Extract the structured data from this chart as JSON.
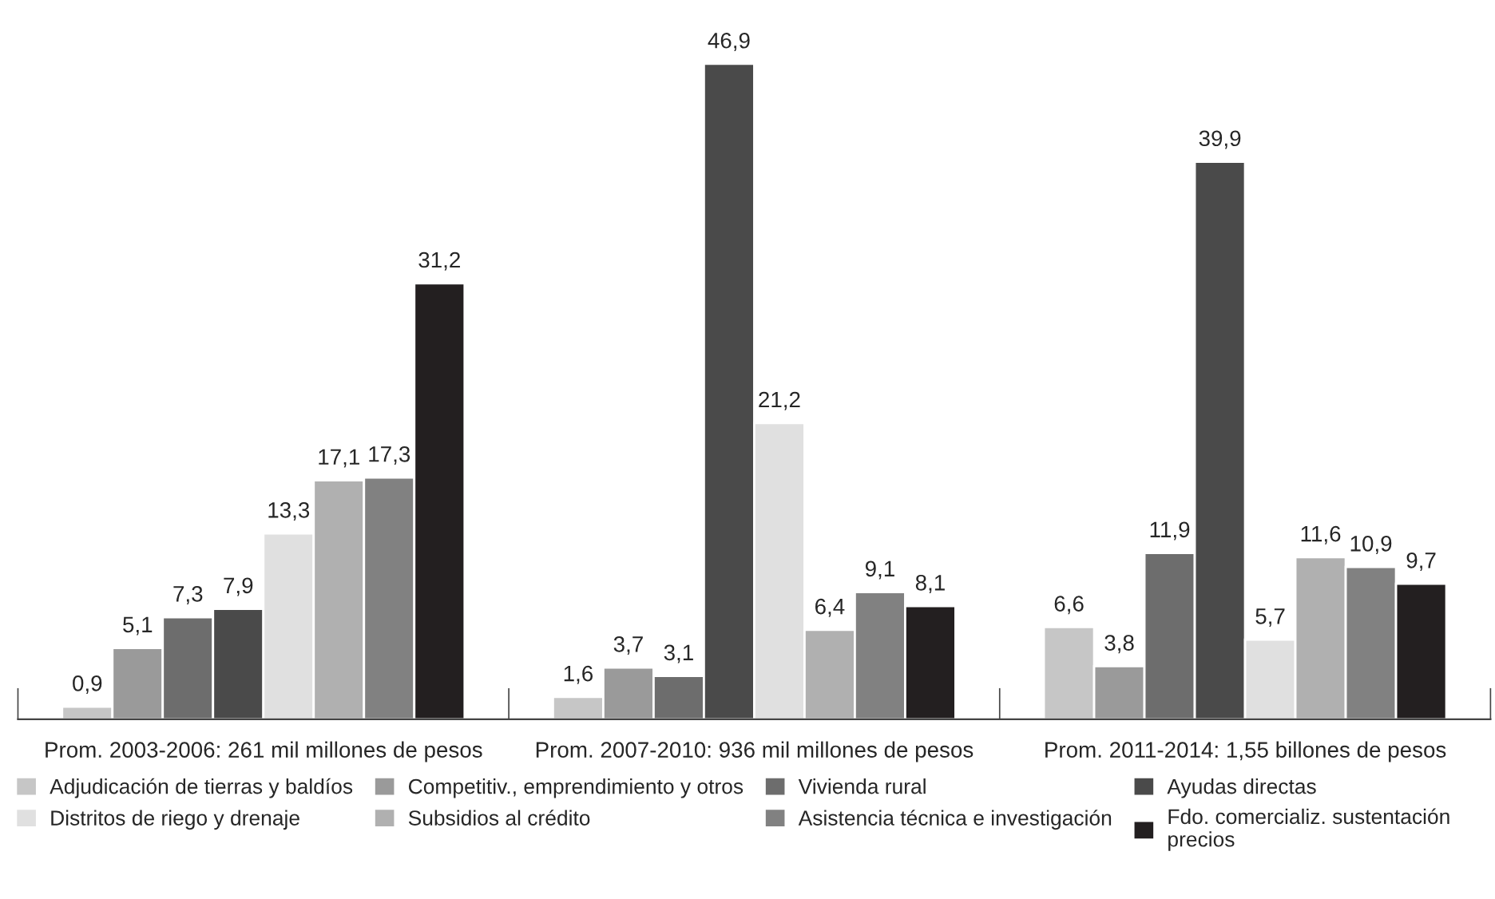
{
  "chart_data": {
    "type": "bar",
    "categories": [
      "Prom. 2003-2006: 261 mil millones de pesos",
      "Prom. 2007-2010: 936 mil millones de pesos",
      "Prom. 2011-2014: 1,55 billones de pesos"
    ],
    "series": [
      {
        "name": "Adjudicación de tierras y baldíos",
        "color": "#c6c6c6",
        "values": [
          0.9,
          1.6,
          6.6
        ],
        "value_labels": [
          "0,9",
          "1,6",
          "6,6"
        ]
      },
      {
        "name": "Competitiv., emprendimiento y otros",
        "color": "#9a9a9a",
        "values": [
          5.1,
          3.7,
          3.8
        ],
        "value_labels": [
          "5,1",
          "3,7",
          "3,8"
        ]
      },
      {
        "name": "Vivienda rural",
        "color": "#6d6d6d",
        "values": [
          7.3,
          3.1,
          11.9
        ],
        "value_labels": [
          "7,3",
          "3,1",
          "11,9"
        ]
      },
      {
        "name": "Ayudas directas",
        "color": "#4a4a4a",
        "values": [
          7.9,
          46.9,
          39.9
        ],
        "value_labels": [
          "7,9",
          "46,9",
          "39,9"
        ]
      },
      {
        "name": "Distritos de riego y drenaje",
        "color": "#e0e0e0",
        "values": [
          13.3,
          21.2,
          5.7
        ],
        "value_labels": [
          "13,3",
          "21,2",
          "5,7"
        ]
      },
      {
        "name": "Subsidios al crédito",
        "color": "#b0b0b0",
        "values": [
          17.1,
          6.4,
          11.6
        ],
        "value_labels": [
          "17,1",
          "6,4",
          "11,6"
        ]
      },
      {
        "name": "Asistencia técnica e investigación",
        "color": "#818181",
        "values": [
          17.3,
          9.1,
          10.9
        ],
        "value_labels": [
          "17,3",
          "9,1",
          "10,9"
        ]
      },
      {
        "name": "Fdo. comercializ. sustentación\nprecios",
        "color": "#231f20",
        "values": [
          31.2,
          8.1,
          9.7
        ],
        "value_labels": [
          "31,2",
          "8,1",
          "9,7"
        ]
      }
    ],
    "tick_labels": "x",
    "legend": "bottom",
    "grid": false
  }
}
